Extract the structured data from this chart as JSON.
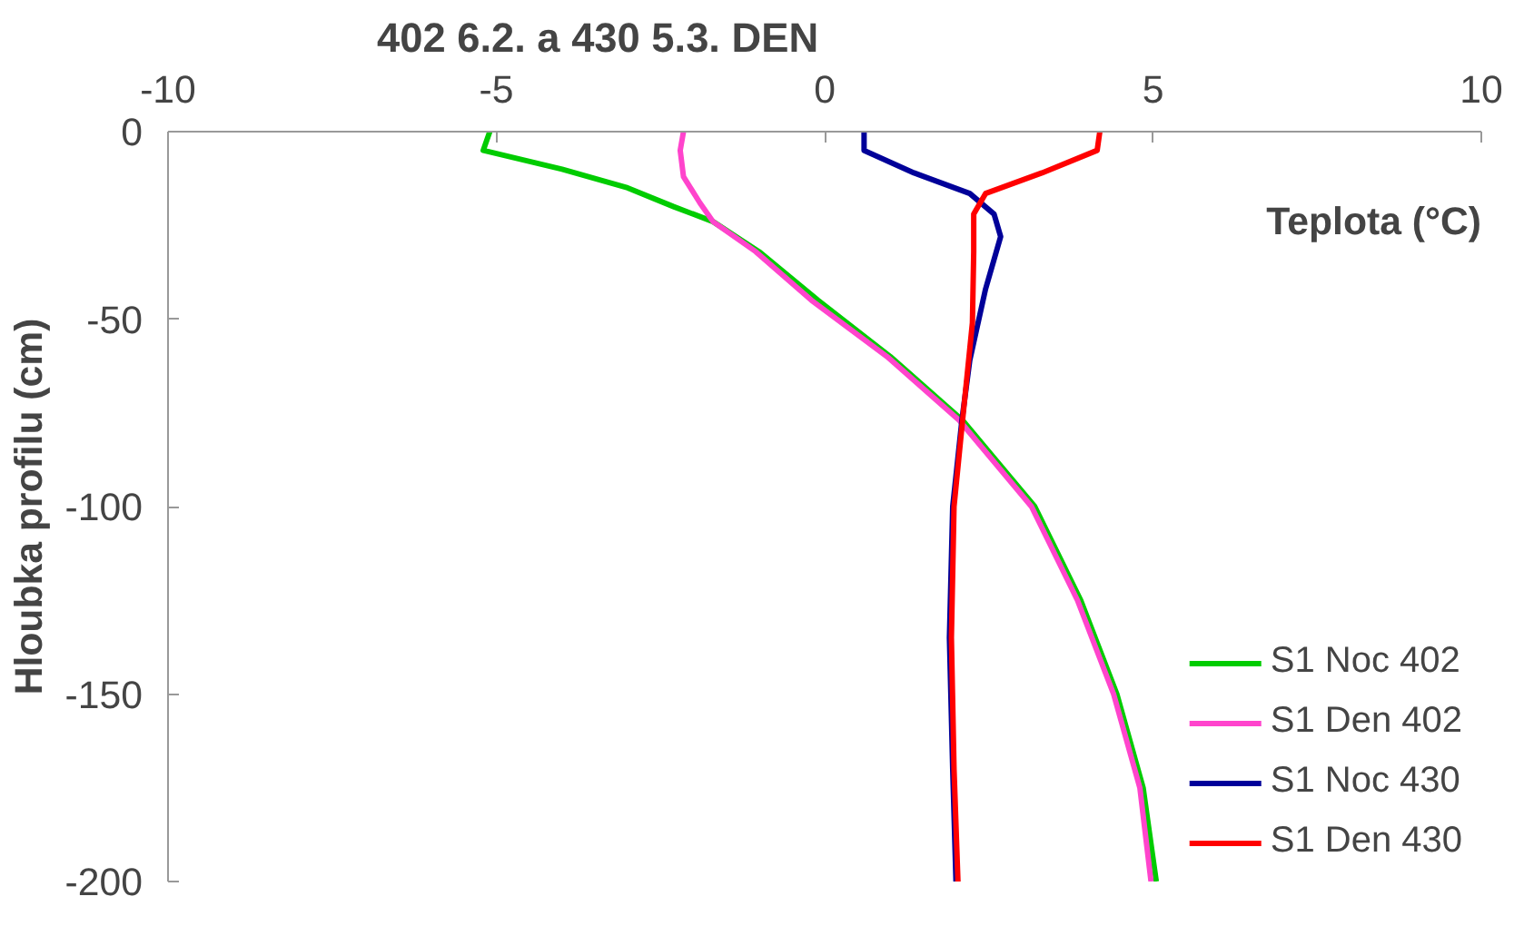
{
  "chart_data": {
    "type": "line",
    "title": "402 6.2. a 430 5.3. DEN",
    "xlabel": "Teplota (°C)",
    "ylabel": "Hloubka profilu (cm)",
    "xlim": [
      -10,
      10
    ],
    "xticks": [
      -10,
      -5,
      0,
      5,
      10
    ],
    "ylim": [
      -200,
      0
    ],
    "yticks": [
      -200,
      -150,
      -100,
      -50,
      0
    ],
    "grid": false,
    "legend": "bottom right",
    "line_style": "solid",
    "series": [
      {
        "name": "S1 Noc 402",
        "color": "#00cc00",
        "x": [
          -5.1,
          -5.2,
          -4.0,
          -3.0,
          -2.3,
          -1.7,
          -1.0,
          -0.1,
          1.0,
          2.1,
          3.2,
          3.9,
          4.45,
          4.85,
          5.05
        ],
        "values": [
          0,
          -5,
          -10,
          -15,
          -20,
          -24,
          -32,
          -45,
          -60,
          -77,
          -100,
          -125,
          -150,
          -175,
          -200
        ]
      },
      {
        "name": "S1 Den 402",
        "color": "#ff44cc",
        "x": [
          -2.15,
          -2.2,
          -2.15,
          -1.9,
          -1.7,
          -1.05,
          -0.2,
          0.95,
          2.05,
          3.15,
          3.85,
          4.4,
          4.8,
          4.97
        ],
        "values": [
          0,
          -5,
          -12,
          -19,
          -24,
          -32,
          -45,
          -60,
          -77,
          -100,
          -125,
          -150,
          -175,
          -200
        ]
      },
      {
        "name": "S1 Noc 430",
        "color": "#000099",
        "x": [
          0.6,
          0.6,
          1.36,
          2.21,
          2.58,
          2.68,
          2.45,
          2.21,
          2.09,
          1.95,
          1.9,
          1.95,
          2.0
        ],
        "values": [
          0,
          -5,
          -11,
          -16.5,
          -22,
          -28,
          -42,
          -61,
          -77,
          -100,
          -135,
          -170,
          -200
        ]
      },
      {
        "name": "S1 Den 430",
        "color": "#ff0000",
        "x": [
          4.19,
          4.15,
          3.31,
          2.45,
          2.27,
          2.27,
          2.25,
          2.1,
          1.97,
          1.93,
          1.97,
          2.03
        ],
        "values": [
          0,
          -5,
          -11,
          -16.5,
          -22,
          -32,
          -51,
          -77,
          -100,
          -135,
          -170,
          -200
        ]
      }
    ]
  }
}
